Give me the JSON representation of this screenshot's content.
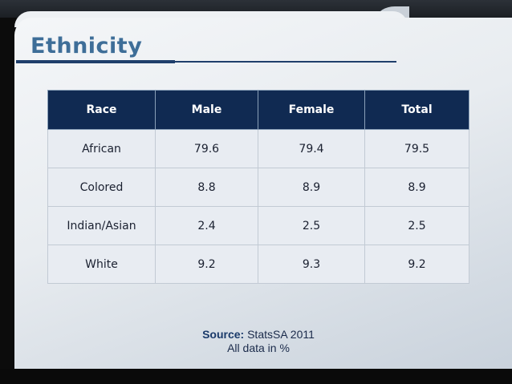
{
  "slide": {
    "title": "Ethnicity",
    "table": {
      "headers": [
        "Race",
        "Male",
        "Female",
        "Total"
      ],
      "rows": [
        [
          "African",
          "79.6",
          "79.4",
          "79.5"
        ],
        [
          "Colored",
          "8.8",
          "8.9",
          "8.9"
        ],
        [
          "Indian/Asian",
          "2.4",
          "2.5",
          "2.5"
        ],
        [
          "White",
          "9.2",
          "9.3",
          "9.2"
        ]
      ]
    },
    "source": {
      "label": "Source:",
      "value": "StatsSA 2011",
      "note": "All data in %"
    }
  },
  "colors": {
    "title": "#3e6e98",
    "header_bg": "#102a52",
    "accent_line": "#1f3f6b"
  }
}
